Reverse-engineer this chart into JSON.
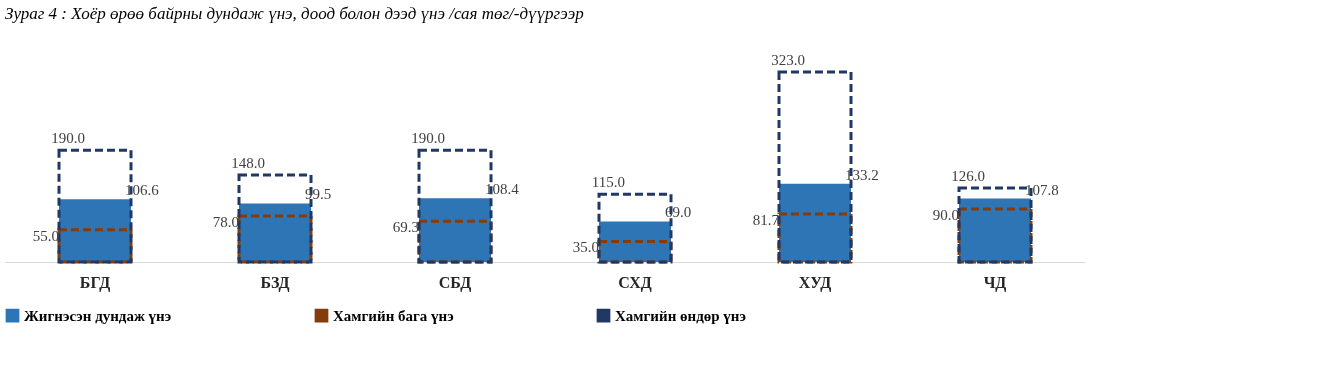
{
  "chart_data": {
    "type": "bar",
    "title": "Зураг 4 : Хоёр өрөө байрны дундаж үнэ, доод болон дээд үнэ /сая төг/-дүүргээр",
    "categories": [
      "БГД",
      "БЗД",
      "СБД",
      "СХД",
      "ХУД",
      "ЧД"
    ],
    "series": [
      {
        "name": "Жигнэсэн дундаж үнэ",
        "color": "#2e75b6",
        "values": [
          106.6,
          99.5,
          108.4,
          69.0,
          133.2,
          107.8
        ],
        "value_labels": [
          "106.6",
          "99.5",
          "108.4",
          "69.0",
          "133.2",
          "107.8"
        ]
      },
      {
        "name": "Хамгийн бага үнэ",
        "color": "#843c0c",
        "line_style": "dashed",
        "values": [
          55.0,
          78.0,
          69.3,
          35.0,
          81.7,
          90.0
        ],
        "value_labels": [
          "55.0",
          "78.0",
          "69.3",
          "35.0",
          "81.7",
          "90.0"
        ]
      },
      {
        "name": "Хамгийн өндөр үнэ",
        "color": "#1f3864",
        "line_style": "dashed",
        "values": [
          190.0,
          148.0,
          190.0,
          115.0,
          323.0,
          126.0
        ],
        "value_labels": [
          "190.0",
          "148.0",
          "190.0",
          "115.0",
          "323.0",
          "126.0"
        ]
      }
    ],
    "legend": "bottom",
    "grid": false
  }
}
